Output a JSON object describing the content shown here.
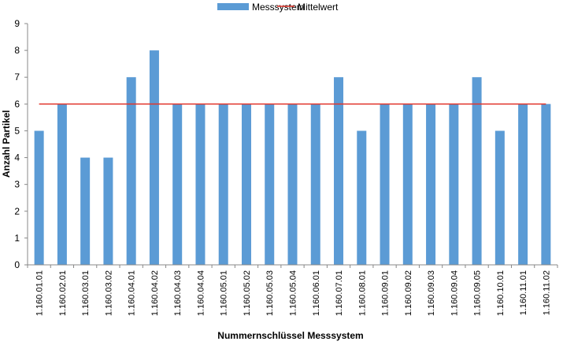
{
  "chart_data": {
    "type": "bar",
    "xlabel": "Nummernschlüssel Messsystem",
    "ylabel": "Anzahl Partikel",
    "ylim": [
      0,
      9
    ],
    "yticks": [
      0,
      1,
      2,
      3,
      4,
      5,
      6,
      7,
      8,
      9
    ],
    "grid": false,
    "legend_position": "top",
    "categories": [
      "1.160.01.01",
      "1.160.02.01",
      "1.160.03.01",
      "1.160.03.02",
      "1.160.04.01",
      "1.160.04.02",
      "1.160.04.03",
      "1.160.04.04",
      "1.160.05.01",
      "1.160.05.02",
      "1.160.05.03",
      "1.160.05.04",
      "1.160.06.01",
      "1.160.07.01",
      "1.160.08.01",
      "1.160.09.01",
      "1.160.09.02",
      "1.160.09.03",
      "1.160.09.04",
      "1.160.09.05",
      "1.160.10.01",
      "1.160.11.01",
      "1.160.11.02"
    ],
    "series": [
      {
        "name": "Messsystem",
        "type": "bar",
        "color": "#5b9bd5",
        "values": [
          5,
          6,
          4,
          4,
          7,
          8,
          6,
          6,
          6,
          6,
          6,
          6,
          6,
          7,
          5,
          6,
          6,
          6,
          6,
          7,
          5,
          6,
          6
        ]
      },
      {
        "name": "Mittelwert",
        "type": "line",
        "color": "#e0352b",
        "value": 6
      }
    ]
  }
}
